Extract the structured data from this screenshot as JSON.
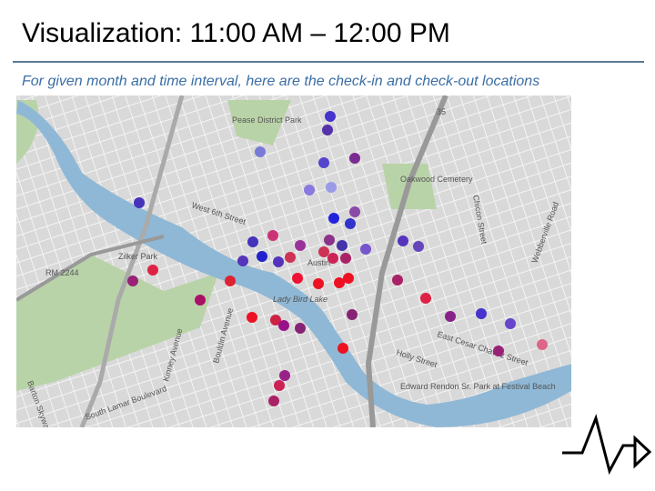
{
  "header": {
    "title": "Visualization: 11:00 AM – 12:00 PM",
    "subtitle": "For given month and time interval, here are the check-in and check-out locations"
  },
  "map": {
    "labels": [
      "Pease District Park",
      "Oakwood Cemetery",
      "West 6th Street",
      "Austin",
      "Lady Bird Lake",
      "Zilker Park",
      "RM 2244",
      "35",
      "East Cesar Chavez Street",
      "Holly Street",
      "Edward Rendon Sr. Park at Festival Beach",
      "Webberville Road",
      "South Lamar Boulevard",
      "Kinney Avenue",
      "Bouldin Avenue",
      "Barton Skyway",
      "Chicon Street"
    ]
  }
}
